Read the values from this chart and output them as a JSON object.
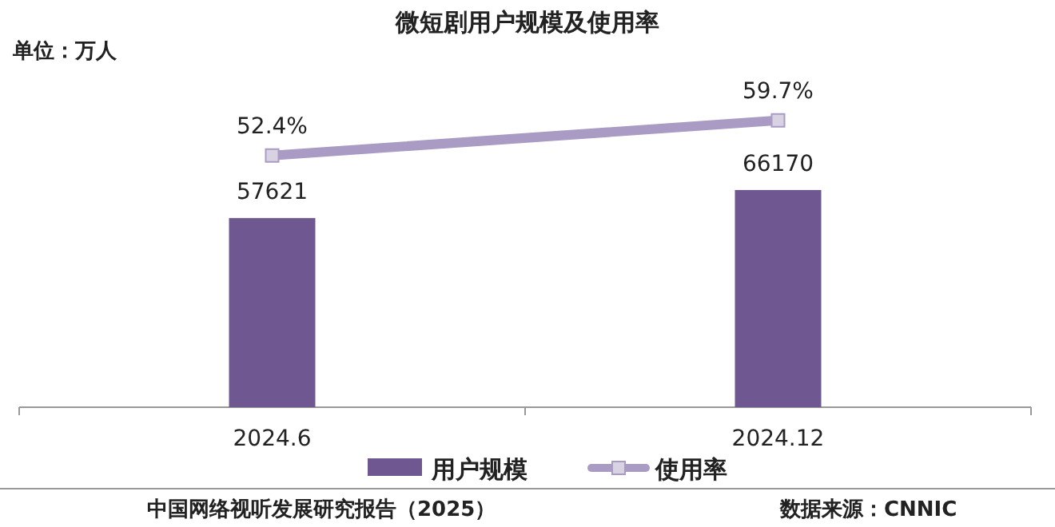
{
  "chart_data": {
    "type": "bar",
    "title": "微短剧用户规模及使用率",
    "categories": [
      "2024.6",
      "2024.12"
    ],
    "series": [
      {
        "name": "用户规模",
        "color": "#6f5891",
        "values": [
          57621,
          66170
        ],
        "value_labels": [
          "57621",
          "66170"
        ]
      },
      {
        "name": "使用率",
        "type": "line",
        "axis": "y2",
        "color": "#a99bc3",
        "marker": "square",
        "values": [
          52.4,
          59.7
        ],
        "value_labels": [
          "52.4%",
          "59.7%"
        ]
      }
    ],
    "ylim": [
      0,
      90000
    ],
    "y2lim": [
      0,
      61.5
    ],
    "tick_labels": "x",
    "legend": "bottom",
    "annotations": [
      "单位：万人",
      "中国网络视听发展研究报告（2025）",
      "数据来源：CNNIC"
    ]
  }
}
